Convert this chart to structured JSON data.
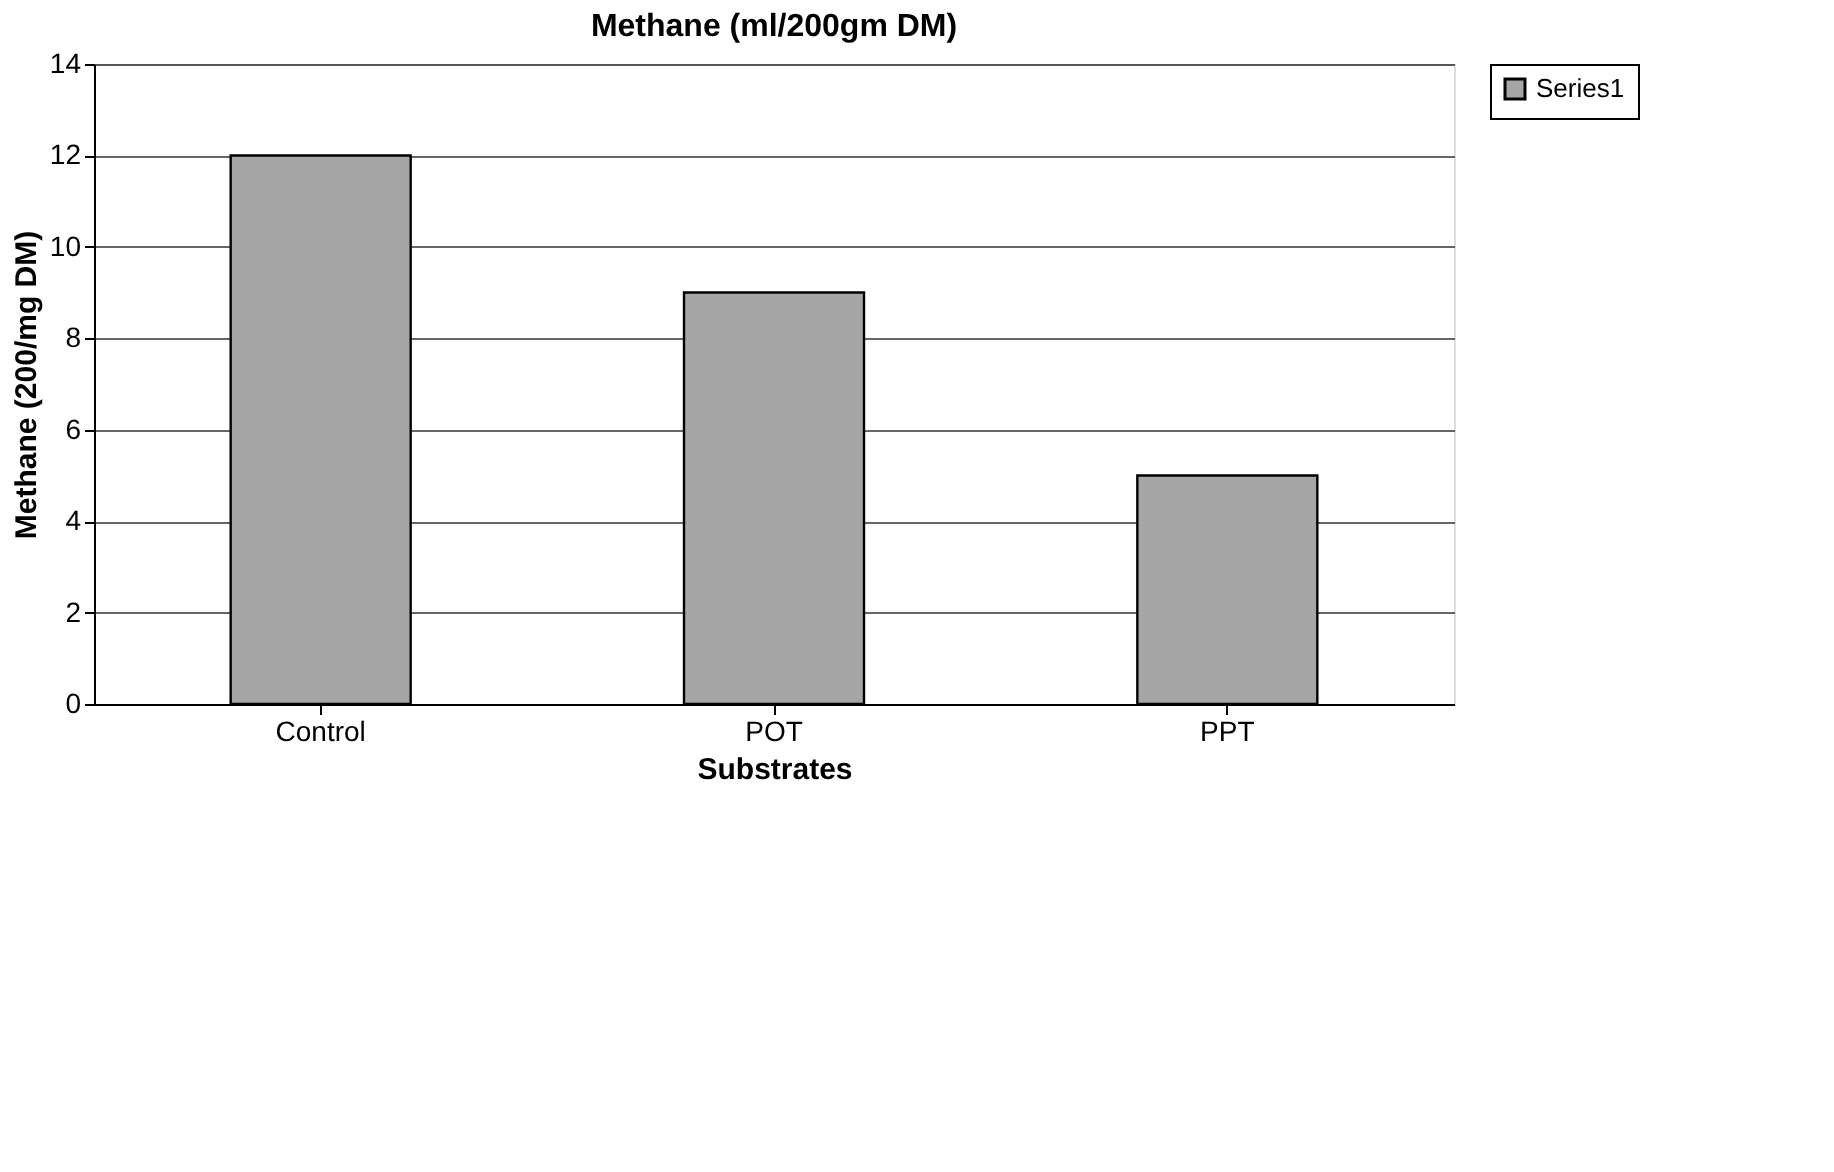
{
  "chart_data": {
    "type": "bar",
    "title": "Methane (ml/200gm DM)",
    "xlabel": "Substrates",
    "ylabel": "Methane (200/mg DM)",
    "categories": [
      "Control",
      "POT",
      "PPT"
    ],
    "series": [
      {
        "name": "Series1",
        "color": "#a6a6a6",
        "values": [
          12,
          9,
          5
        ]
      }
    ],
    "ylim": [
      0,
      14
    ],
    "yticks": [
      0,
      2,
      4,
      6,
      8,
      10,
      12,
      14
    ],
    "grid": "y",
    "legend": "right"
  }
}
